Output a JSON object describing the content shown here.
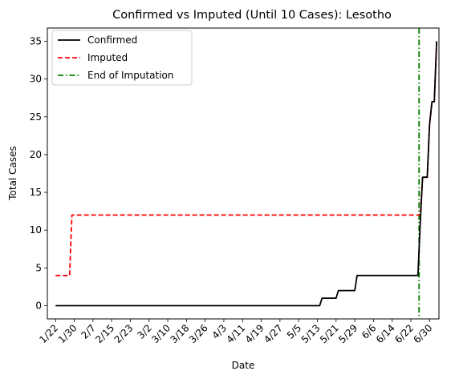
{
  "chart_data": {
    "type": "line",
    "title": "Confirmed vs Imputed (Until 10 Cases): Lesotho",
    "xlabel": "Date",
    "ylabel": "Total Cases",
    "x_tick_labels": [
      "1/22",
      "1/30",
      "2/7",
      "2/15",
      "2/23",
      "3/2",
      "3/10",
      "3/18",
      "3/26",
      "4/3",
      "4/11",
      "4/19",
      "4/27",
      "5/5",
      "5/13",
      "5/21",
      "5/29",
      "6/6",
      "6/14",
      "6/22",
      "6/30"
    ],
    "y_ticks": [
      0,
      5,
      10,
      15,
      20,
      25,
      30,
      35
    ],
    "ylim": [
      -1.75,
      36.75
    ],
    "x_range_days": [
      -3.5,
      164
    ],
    "grid": false,
    "legend_position": "upper-left",
    "series": [
      {
        "name": "Confirmed",
        "color": "#000000",
        "style": "solid",
        "days": [
          0,
          113,
          114,
          120,
          121,
          128,
          129,
          155,
          156,
          157,
          159,
          160,
          161,
          162,
          163
        ],
        "values": [
          0,
          0,
          1,
          1,
          2,
          2,
          4,
          4,
          11,
          17,
          17,
          24,
          27,
          27,
          35
        ]
      },
      {
        "name": "Imputed",
        "color": "#ff0000",
        "style": "dashed",
        "days": [
          0,
          6,
          7,
          155,
          156,
          157,
          159,
          160,
          161,
          162,
          163
        ],
        "values": [
          4,
          4,
          12,
          12,
          12,
          17,
          17,
          24,
          27,
          27,
          35
        ]
      }
    ],
    "vline": {
      "name": "End of Imputation",
      "day": 155.5,
      "color": "#008000",
      "style": "dashdot"
    }
  }
}
